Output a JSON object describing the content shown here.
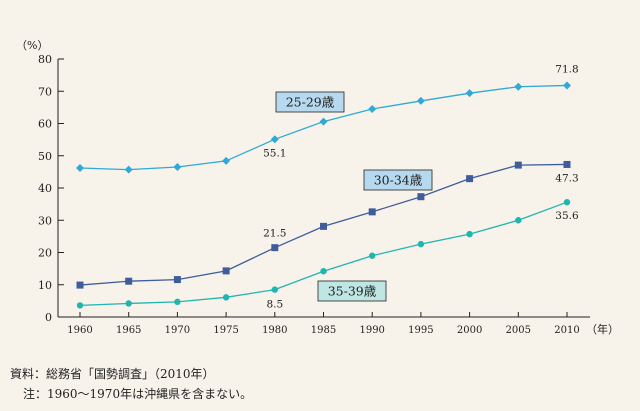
{
  "chart_data": {
    "type": "line",
    "y_unit": "（%）",
    "x_unit": "（年）",
    "ylim": [
      0,
      80
    ],
    "yticks": [
      0,
      10,
      20,
      30,
      40,
      50,
      60,
      70,
      80
    ],
    "categories": [
      "1960",
      "1965",
      "1970",
      "1975",
      "1980",
      "1985",
      "1990",
      "1995",
      "2000",
      "2005",
      "2010"
    ],
    "grid": false,
    "series": [
      {
        "name": "25-29歳",
        "marker": "diamond",
        "color": "#2fa9d8",
        "label_fill": "#b7d9ef",
        "values": [
          46.2,
          45.7,
          46.5,
          48.4,
          55.1,
          60.6,
          64.5,
          67.0,
          69.4,
          71.4,
          71.8
        ],
        "annotations": [
          {
            "index": 4,
            "text": "55.1"
          },
          {
            "index": 10,
            "text": "71.8"
          }
        ]
      },
      {
        "name": "30-34歳",
        "marker": "square",
        "color": "#3e5d9a",
        "label_fill": "#b7d9ef",
        "values": [
          9.9,
          11.1,
          11.6,
          14.3,
          21.5,
          28.1,
          32.6,
          37.3,
          42.9,
          47.1,
          47.3
        ],
        "annotations": [
          {
            "index": 4,
            "text": "21.5"
          },
          {
            "index": 10,
            "text": "47.3"
          }
        ]
      },
      {
        "name": "35-39歳",
        "marker": "circle",
        "color": "#1fb5b0",
        "label_fill": "#bfe6e3",
        "values": [
          3.6,
          4.2,
          4.7,
          6.1,
          8.5,
          14.2,
          19.0,
          22.6,
          25.7,
          30.0,
          35.6
        ],
        "annotations": [
          {
            "index": 4,
            "text": "8.5"
          },
          {
            "index": 10,
            "text": "35.6"
          }
        ]
      }
    ]
  },
  "footer": {
    "source": "資料：総務省「国勢調査」（2010年）",
    "note": "注：1960〜1970年は沖縄県を含まない。"
  }
}
